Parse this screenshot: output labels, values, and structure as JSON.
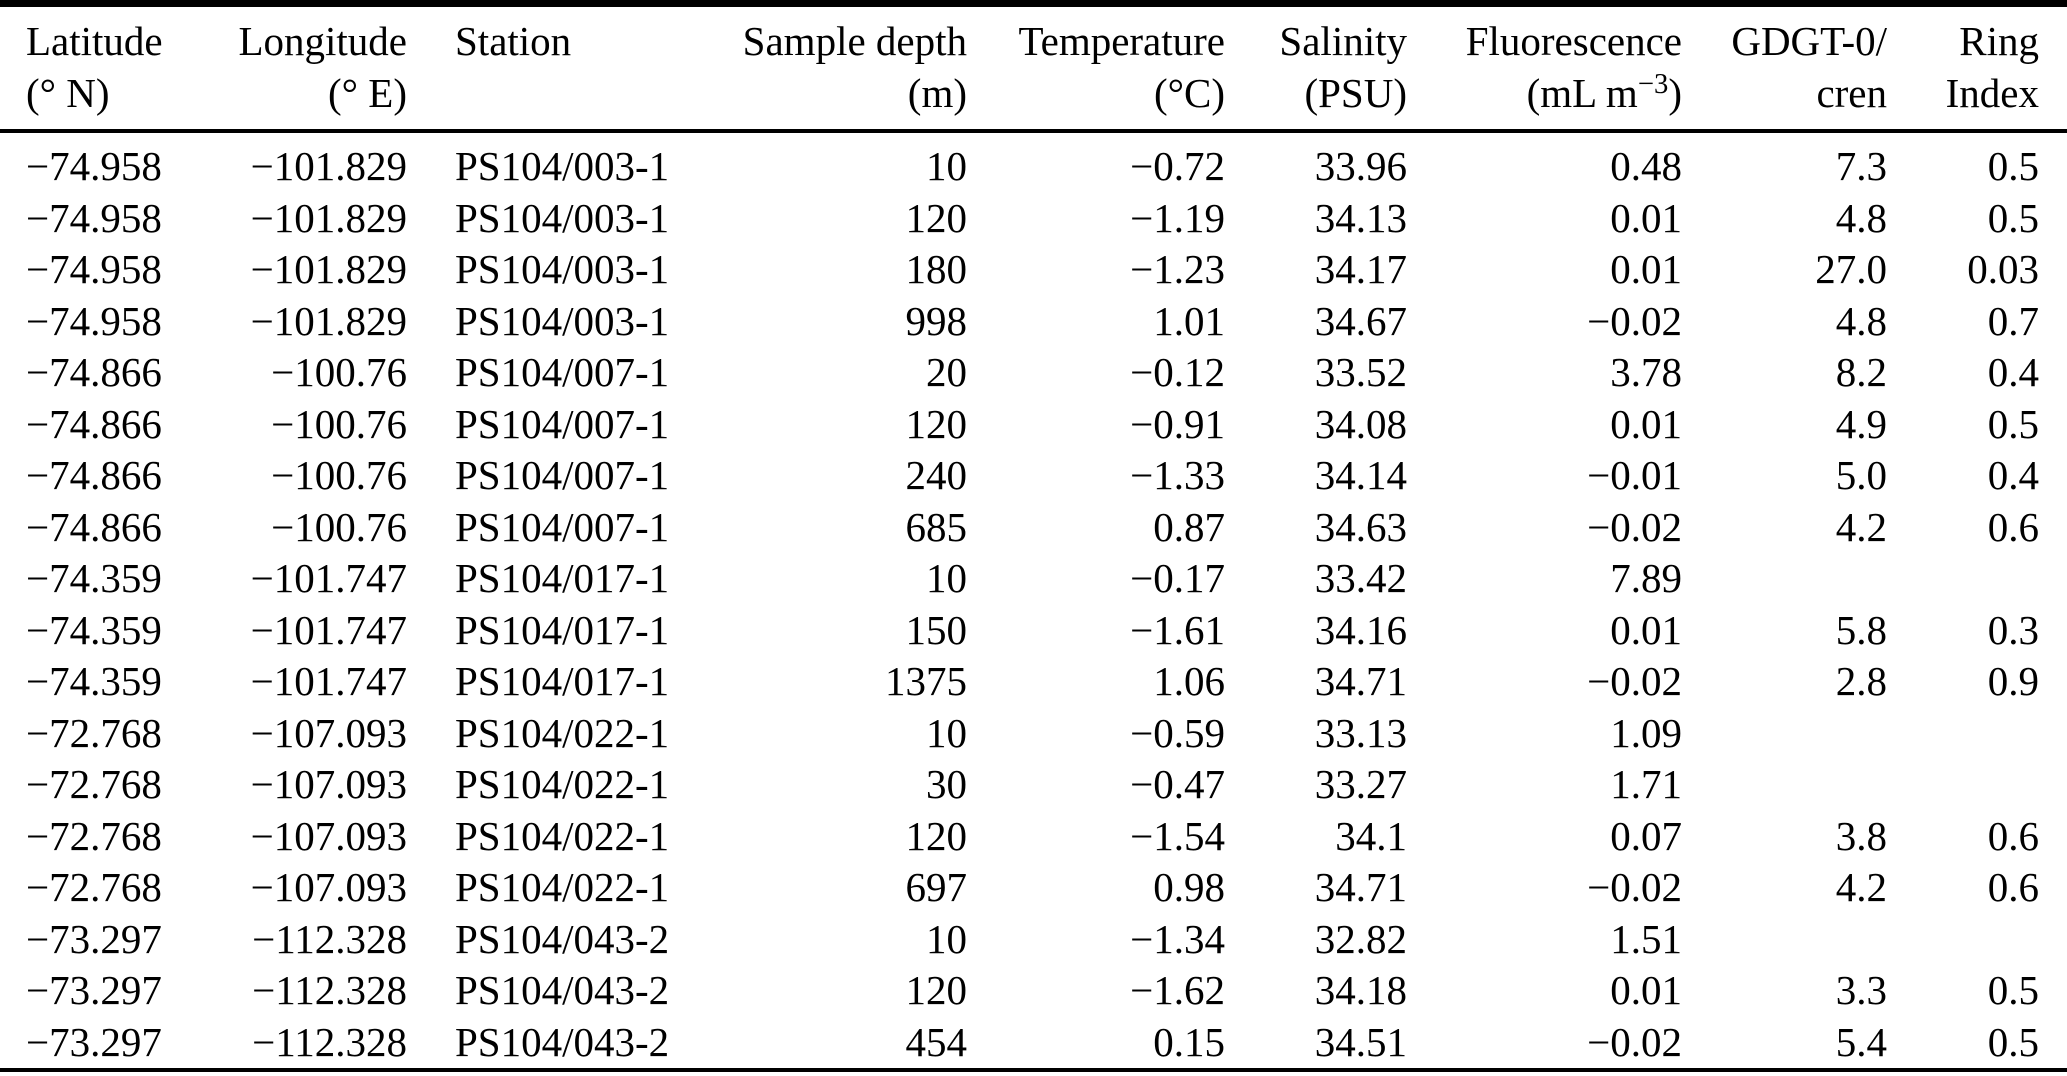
{
  "table": {
    "columns": [
      {
        "id": "latitude",
        "align": "left",
        "line1": "Latitude",
        "line2": "(° N)"
      },
      {
        "id": "longitude",
        "align": "right",
        "line1": "Longitude",
        "line2": "(° E)"
      },
      {
        "id": "station",
        "align": "left",
        "line1": "Station",
        "line2": ""
      },
      {
        "id": "sample-depth",
        "align": "right",
        "line1": "Sample depth",
        "line2": "(m)"
      },
      {
        "id": "temperature",
        "align": "right",
        "line1": "Temperature",
        "line2": "(°C)"
      },
      {
        "id": "salinity",
        "align": "right",
        "line1": "Salinity",
        "line2": "(PSU)"
      },
      {
        "id": "fluorescence",
        "align": "right",
        "line1": "Fluorescence",
        "line2_prefix": "(mL m",
        "line2_sup": "−3",
        "line2_suffix": ")"
      },
      {
        "id": "gdgt0-cren",
        "align": "right",
        "line1": "GDGT-0/",
        "line2": "cren"
      },
      {
        "id": "ring-index",
        "align": "right",
        "line1": "Ring",
        "line2": "Index"
      }
    ],
    "rows": [
      [
        "−74.958",
        "−101.829",
        "PS104/003-1",
        "10",
        "−0.72",
        "33.96",
        "0.48",
        "7.3",
        "0.5"
      ],
      [
        "−74.958",
        "−101.829",
        "PS104/003-1",
        "120",
        "−1.19",
        "34.13",
        "0.01",
        "4.8",
        "0.5"
      ],
      [
        "−74.958",
        "−101.829",
        "PS104/003-1",
        "180",
        "−1.23",
        "34.17",
        "0.01",
        "27.0",
        "0.03"
      ],
      [
        "−74.958",
        "−101.829",
        "PS104/003-1",
        "998",
        "1.01",
        "34.67",
        "−0.02",
        "4.8",
        "0.7"
      ],
      [
        "−74.866",
        "−100.76",
        "PS104/007-1",
        "20",
        "−0.12",
        "33.52",
        "3.78",
        "8.2",
        "0.4"
      ],
      [
        "−74.866",
        "−100.76",
        "PS104/007-1",
        "120",
        "−0.91",
        "34.08",
        "0.01",
        "4.9",
        "0.5"
      ],
      [
        "−74.866",
        "−100.76",
        "PS104/007-1",
        "240",
        "−1.33",
        "34.14",
        "−0.01",
        "5.0",
        "0.4"
      ],
      [
        "−74.866",
        "−100.76",
        "PS104/007-1",
        "685",
        "0.87",
        "34.63",
        "−0.02",
        "4.2",
        "0.6"
      ],
      [
        "−74.359",
        "−101.747",
        "PS104/017-1",
        "10",
        "−0.17",
        "33.42",
        "7.89",
        "",
        ""
      ],
      [
        "−74.359",
        "−101.747",
        "PS104/017-1",
        "150",
        "−1.61",
        "34.16",
        "0.01",
        "5.8",
        "0.3"
      ],
      [
        "−74.359",
        "−101.747",
        "PS104/017-1",
        "1375",
        "1.06",
        "34.71",
        "−0.02",
        "2.8",
        "0.9"
      ],
      [
        "−72.768",
        "−107.093",
        "PS104/022-1",
        "10",
        "−0.59",
        "33.13",
        "1.09",
        "",
        ""
      ],
      [
        "−72.768",
        "−107.093",
        "PS104/022-1",
        "30",
        "−0.47",
        "33.27",
        "1.71",
        "",
        ""
      ],
      [
        "−72.768",
        "−107.093",
        "PS104/022-1",
        "120",
        "−1.54",
        "34.1",
        "0.07",
        "3.8",
        "0.6"
      ],
      [
        "−72.768",
        "−107.093",
        "PS104/022-1",
        "697",
        "0.98",
        "34.71",
        "−0.02",
        "4.2",
        "0.6"
      ],
      [
        "−73.297",
        "−112.328",
        "PS104/043-2",
        "10",
        "−1.34",
        "32.82",
        "1.51",
        "",
        ""
      ],
      [
        "−73.297",
        "−112.328",
        "PS104/043-2",
        "120",
        "−1.62",
        "34.18",
        "0.01",
        "3.3",
        "0.5"
      ],
      [
        "−73.297",
        "−112.328",
        "PS104/043-2",
        "454",
        "0.15",
        "34.51",
        "−0.02",
        "5.4",
        "0.5"
      ]
    ]
  }
}
